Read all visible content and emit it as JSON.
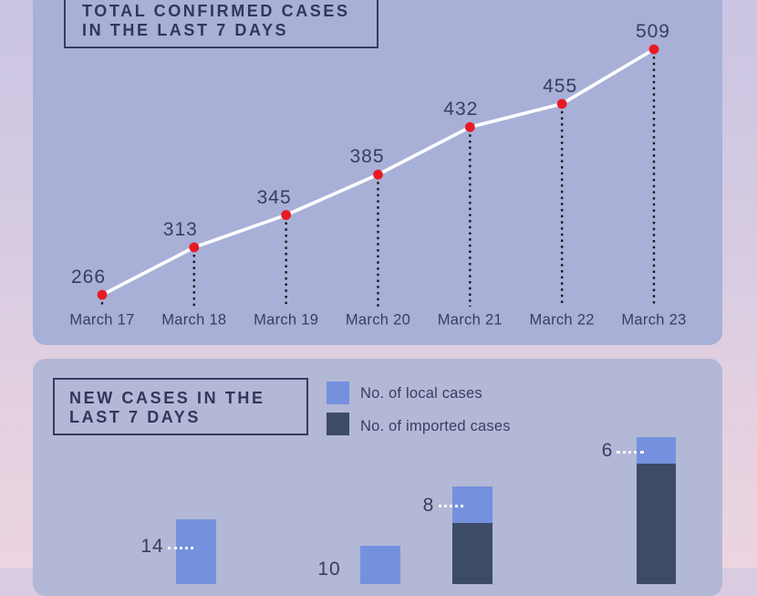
{
  "colors": {
    "panel_top": "#a8b0d8",
    "panel_bottom": "#b2b8d6",
    "ink": "#33355c",
    "line": "#ffffff",
    "point": "#ea1a24",
    "drop_line": "#17171f",
    "local": "#7591de",
    "imported": "#3e4b66",
    "leader": "#ffffff"
  },
  "top_panel": {
    "title_line1": "TOTAL CONFIRMED CASES",
    "title_line2": "IN THE LAST 7 DAYS"
  },
  "bottom_panel": {
    "title_line1": "NEW CASES IN THE",
    "title_line2": "LAST 7 DAYS",
    "legend": [
      {
        "label": "No. of local cases",
        "color": "#7591de"
      },
      {
        "label": "No. of imported cases",
        "color": "#3e4b66"
      }
    ]
  },
  "chart_data": [
    {
      "type": "line",
      "title": "TOTAL CONFIRMED CASES IN THE LAST 7 DAYS",
      "categories": [
        "March 17",
        "March 18",
        "March 19",
        "March 20",
        "March 21",
        "March 22",
        "March 23"
      ],
      "values": [
        266,
        313,
        345,
        385,
        432,
        455,
        509
      ],
      "ylim": [
        266,
        509
      ],
      "grid": false,
      "point_color": "#ea1a24",
      "line_color": "#ffffff"
    },
    {
      "type": "bar",
      "title": "NEW CASES IN THE LAST 7 DAYS",
      "legend": [
        "No. of local cases",
        "No. of imported cases"
      ],
      "legend_position": "top-right",
      "visible_bars": [
        {
          "label": "14",
          "x": 193,
          "width": 44,
          "local_top": 569,
          "imported_top": null,
          "label_x": 167,
          "label_y": 599,
          "leader_x": 184,
          "leader_w": 28,
          "leader_y": 599
        },
        {
          "label": "10",
          "x": 395,
          "width": 44,
          "local_top": 598,
          "imported_top": null,
          "label_x": 361,
          "label_y": 624,
          "leader_x": null,
          "leader_w": 0,
          "leader_y": 0
        },
        {
          "label": "8",
          "x": 496,
          "width": 44,
          "local_top": 533,
          "imported_top": 573,
          "label_x": 470,
          "label_y": 554,
          "leader_x": 481,
          "leader_w": 27,
          "leader_y": 553
        },
        {
          "label": "6",
          "x": 698,
          "width": 43,
          "local_top": 479,
          "imported_top": 508,
          "label_x": 666,
          "label_y": 494,
          "leader_x": 676,
          "leader_w": 30,
          "leader_y": 494
        }
      ]
    }
  ]
}
